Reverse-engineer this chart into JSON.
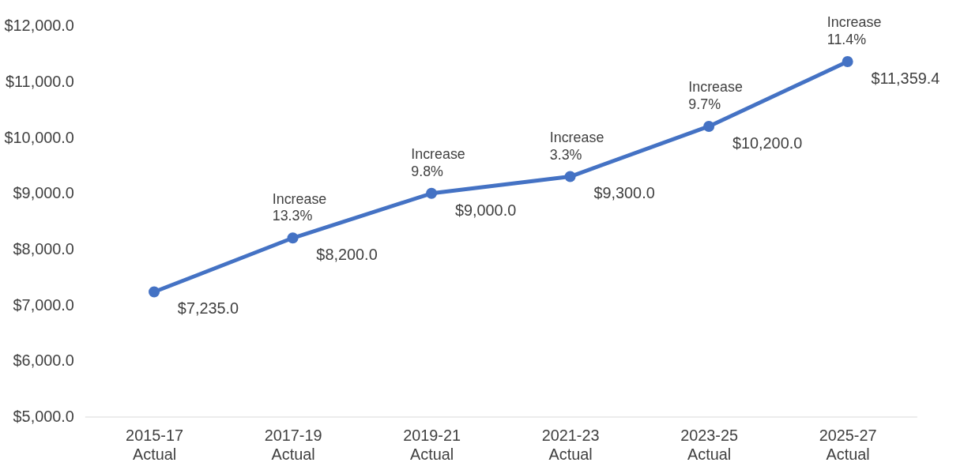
{
  "chart_data": {
    "type": "line",
    "categories": [
      "2015-17 Actual",
      "2017-19 Actual",
      "2019-21 Actual",
      "2021-23 Actual",
      "2023-25 Actual",
      "2025-27 Actual"
    ],
    "series": [
      {
        "color": "#4472c4",
        "values": [
          7235.0,
          8200.0,
          9000.0,
          9300.0,
          10200.0,
          11359.4
        ],
        "value_labels": [
          "$7,235.0",
          "$8,200.0",
          "$9,000.0",
          "$9,300.0",
          "$10,200.0",
          "$11,359.4"
        ]
      }
    ],
    "ylim": [
      5000,
      12000
    ],
    "yticks": [
      {
        "value": 5000,
        "label": "$5,000.0"
      },
      {
        "value": 6000,
        "label": "$6,000.0"
      },
      {
        "value": 7000,
        "label": "$7,000.0"
      },
      {
        "value": 8000,
        "label": "$8,000.0"
      },
      {
        "value": 9000,
        "label": "$9,000.0"
      },
      {
        "value": 10000,
        "label": "$10,000.0"
      },
      {
        "value": 11000,
        "label": "$11,000.0"
      },
      {
        "value": 12000,
        "label": "$12,000.0"
      }
    ],
    "annotations": [
      {
        "text": "Increase 13.3%",
        "x": "2017-19 Actual",
        "y": 8200.0
      },
      {
        "text": "Increase 9.8%",
        "x": "2019-21 Actual",
        "y": 9000.0
      },
      {
        "text": "Increase 3.3%",
        "x": "2021-23 Actual",
        "y": 9300.0
      },
      {
        "text": "Increase 9.7%",
        "x": "2023-25 Actual",
        "y": 10200.0
      },
      {
        "text": "Increase 11.4%",
        "x": "2025-27 Actual",
        "y": 11359.4
      }
    ],
    "grid": false,
    "marker": "circle",
    "line_style": "solid"
  }
}
